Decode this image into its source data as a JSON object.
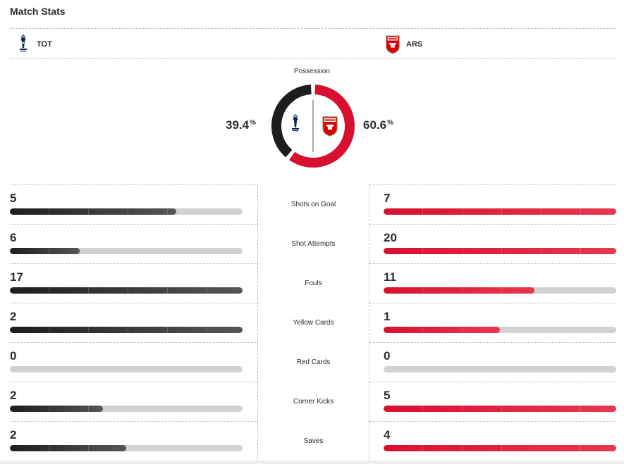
{
  "title": "Match Stats",
  "teams": {
    "home": {
      "abbr": "TOT",
      "color": "#1d1d1d",
      "crest_icon": "tottenham-crest-icon"
    },
    "away": {
      "abbr": "ARS",
      "color": "#d8102f",
      "crest_icon": "arsenal-crest-icon"
    }
  },
  "possession": {
    "label": "Possession",
    "home": "39.4",
    "away": "60.6",
    "unit": "%",
    "home_value": 39.4,
    "away_value": 60.6
  },
  "stats": [
    {
      "label": "Shots on Goal",
      "home": "5",
      "away": "7",
      "home_fill": 0.715,
      "away_fill": 1.0
    },
    {
      "label": "Shot Attempts",
      "home": "6",
      "away": "20",
      "home_fill": 0.3,
      "away_fill": 1.0
    },
    {
      "label": "Fouls",
      "home": "17",
      "away": "11",
      "home_fill": 1.0,
      "away_fill": 0.647
    },
    {
      "label": "Yellow Cards",
      "home": "2",
      "away": "1",
      "home_fill": 1.0,
      "away_fill": 0.5
    },
    {
      "label": "Red Cards",
      "home": "0",
      "away": "0",
      "home_fill": 0.0,
      "away_fill": 0.0
    },
    {
      "label": "Corner Kicks",
      "home": "2",
      "away": "5",
      "home_fill": 0.4,
      "away_fill": 1.0
    },
    {
      "label": "Saves",
      "home": "2",
      "away": "4",
      "home_fill": 0.5,
      "away_fill": 1.0
    }
  ]
}
